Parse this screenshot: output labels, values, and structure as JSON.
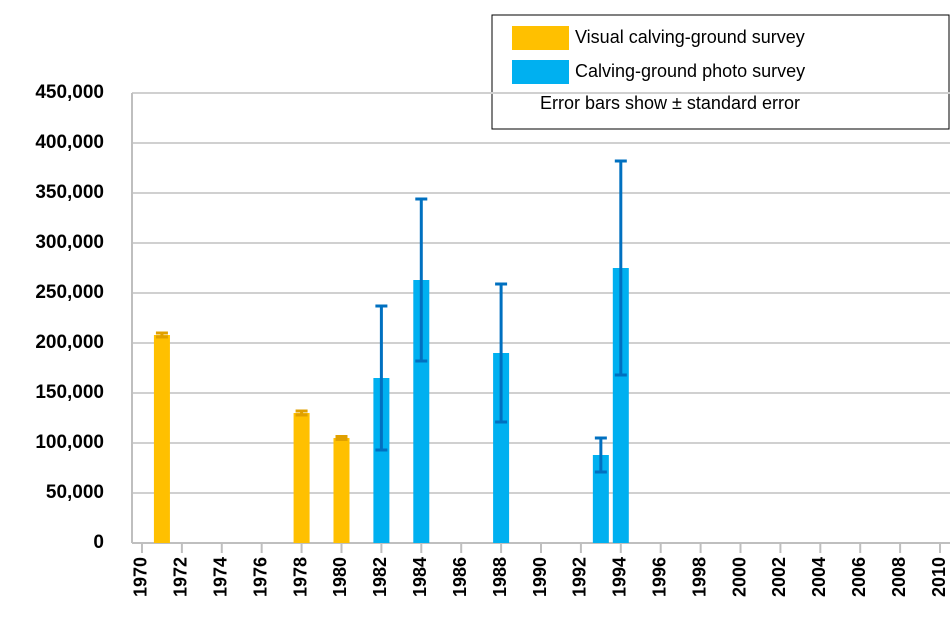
{
  "chart_data": {
    "type": "bar",
    "legend_labels_note": null,
    "annotation": "Error bars show ± standard error",
    "legend": "top-right",
    "grid": true,
    "xlim": [
      1969.5,
      2010.5
    ],
    "xticks": [
      1970,
      1972,
      1974,
      1976,
      1978,
      1980,
      1982,
      1984,
      1986,
      1988,
      1990,
      1992,
      1994,
      1996,
      1998,
      2000,
      2002,
      2004,
      2006,
      2008,
      2010
    ],
    "ylim": [
      0,
      450000
    ],
    "yticks": [
      0,
      {
        "value": 50000,
        "label": "50,000"
      },
      {
        "value": 100000,
        "label": "100,000"
      },
      {
        "value": 150000,
        "label": "150,000"
      },
      {
        "value": 200000,
        "label": "200,000"
      },
      {
        "value": 250000,
        "label": "250,000"
      },
      {
        "value": 300000,
        "label": "300,000"
      },
      {
        "value": 350000,
        "label": "350,000"
      },
      {
        "value": 400000,
        "label": "400,000"
      },
      {
        "value": 450000,
        "label": "450,000"
      }
    ],
    "series": [
      {
        "name": "Visual calving-ground survey",
        "color": "#ffc000",
        "error_color": "#e0a000",
        "x": [
          1971,
          1978,
          1980
        ],
        "values": [
          208000,
          130000,
          105000
        ],
        "errors": [
          2000,
          2000,
          1500
        ]
      },
      {
        "name": "Calving-ground photo survey",
        "color": "#00b0f0",
        "error_color": "#0070c0",
        "x": [
          1982,
          1984,
          1988,
          1993,
          1994
        ],
        "values": [
          165000,
          263000,
          190000,
          88000,
          275000
        ],
        "errors": [
          72000,
          81000,
          69000,
          17000,
          107000
        ]
      }
    ]
  }
}
